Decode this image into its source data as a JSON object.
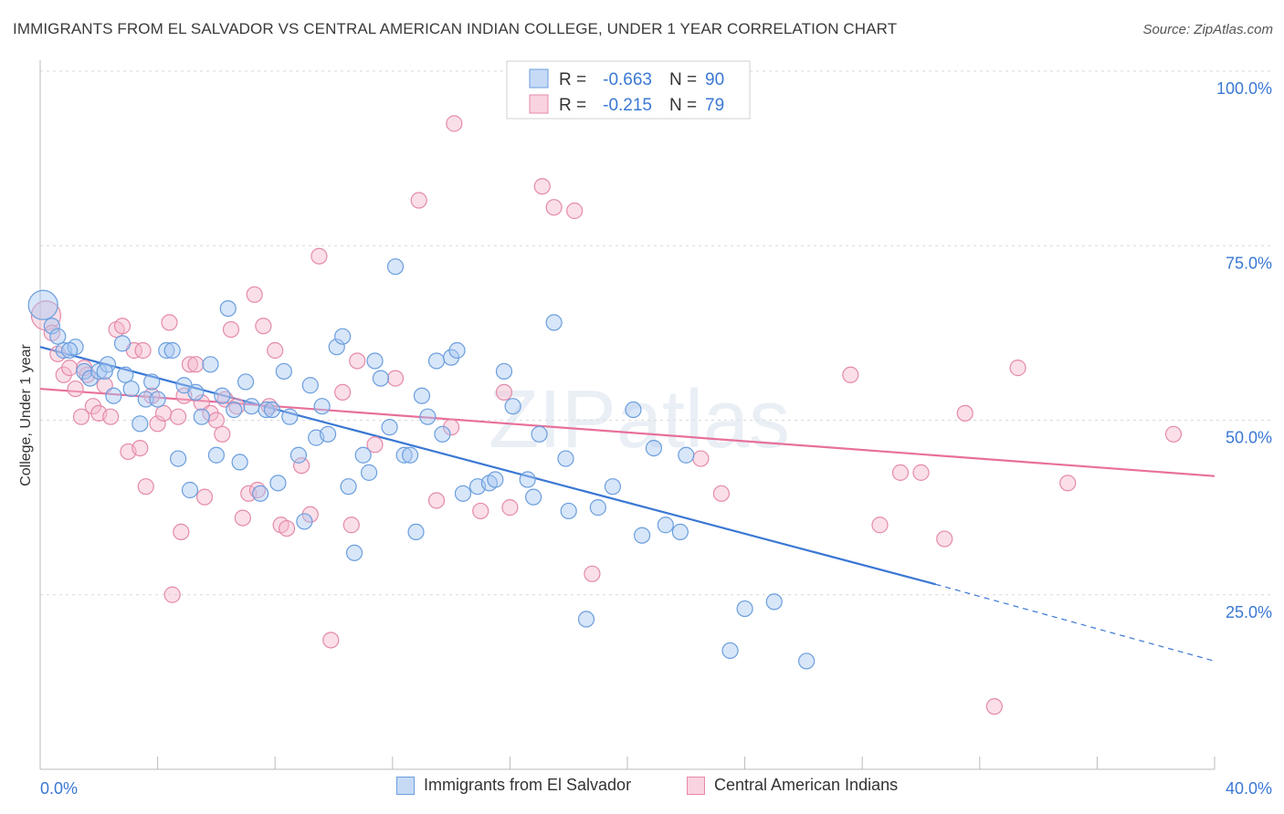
{
  "title": "IMMIGRANTS FROM EL SALVADOR VS CENTRAL AMERICAN INDIAN COLLEGE, UNDER 1 YEAR CORRELATION CHART",
  "source": "Source: ZipAtlas.com",
  "watermark": "ZIPatlas",
  "colors": {
    "blue": "#3a78d4",
    "blue_fill": "#a9c8f2",
    "pink": "#e8709a",
    "pink_fill": "#f5b9cc",
    "accent_text": "#3a78d4"
  },
  "legend_top": [
    {
      "r_label": "R =",
      "r_value": "-0.663",
      "n_label": "N =",
      "n_value": "90"
    },
    {
      "r_label": "R =",
      "r_value": "-0.215",
      "n_label": "N =",
      "n_value": "79"
    }
  ],
  "legend_bottom": [
    "Immigrants from El Salvador",
    "Central American Indians"
  ],
  "chart_data": {
    "type": "scatter",
    "title": "IMMIGRANTS FROM EL SALVADOR VS CENTRAL AMERICAN INDIAN COLLEGE, UNDER 1 YEAR CORRELATION CHART",
    "xlabel": "",
    "ylabel": "College, Under 1 year",
    "xlim": [
      0,
      40
    ],
    "ylim": [
      0,
      100
    ],
    "x_tick_labels": [
      "0.0%",
      "40.0%"
    ],
    "y_tick_labels": [
      "25.0%",
      "50.0%",
      "75.0%",
      "100.0%"
    ],
    "y_ticks": [
      25,
      50,
      75,
      100
    ],
    "grid": true,
    "legend_position": "top-center",
    "series": [
      {
        "name": "Immigrants from El Salvador",
        "color": "#3a78d4",
        "trend": {
          "x0": 0,
          "y0": 60.5,
          "x1": 30.5,
          "y1": 26.5,
          "dash_to_x": 40,
          "dash_to_y": 15.5
        },
        "points": [
          [
            0.1,
            66.5
          ],
          [
            0.4,
            63.5
          ],
          [
            0.6,
            62
          ],
          [
            0.8,
            60
          ],
          [
            1.2,
            60.5
          ],
          [
            1.0,
            60
          ],
          [
            1.5,
            57
          ],
          [
            1.7,
            56
          ],
          [
            2.0,
            57
          ],
          [
            2.3,
            58
          ],
          [
            2.5,
            53.5
          ],
          [
            2.8,
            61
          ],
          [
            2.9,
            56.5
          ],
          [
            3.1,
            54.5
          ],
          [
            3.4,
            49.5
          ],
          [
            3.6,
            53
          ],
          [
            3.8,
            55.5
          ],
          [
            4.0,
            53
          ],
          [
            4.3,
            60
          ],
          [
            4.5,
            60
          ],
          [
            4.7,
            44.5
          ],
          [
            4.9,
            55
          ],
          [
            5.1,
            40
          ],
          [
            5.3,
            54
          ],
          [
            5.5,
            50.5
          ],
          [
            5.8,
            58
          ],
          [
            6.0,
            45
          ],
          [
            6.2,
            53.5
          ],
          [
            6.4,
            66
          ],
          [
            6.6,
            51.5
          ],
          [
            6.8,
            44
          ],
          [
            7.0,
            55.5
          ],
          [
            7.2,
            52
          ],
          [
            7.5,
            39.5
          ],
          [
            7.7,
            51.5
          ],
          [
            7.9,
            51.5
          ],
          [
            8.1,
            41
          ],
          [
            8.3,
            57
          ],
          [
            8.5,
            50.5
          ],
          [
            8.8,
            45
          ],
          [
            9.0,
            35.5
          ],
          [
            9.2,
            55
          ],
          [
            9.4,
            47.5
          ],
          [
            9.6,
            52
          ],
          [
            9.8,
            48
          ],
          [
            10.1,
            60.5
          ],
          [
            10.3,
            62
          ],
          [
            10.5,
            40.5
          ],
          [
            10.7,
            31
          ],
          [
            11.0,
            45
          ],
          [
            11.2,
            42.5
          ],
          [
            11.4,
            58.5
          ],
          [
            11.6,
            56
          ],
          [
            11.9,
            49
          ],
          [
            12.1,
            72
          ],
          [
            12.4,
            45
          ],
          [
            12.6,
            45
          ],
          [
            12.8,
            34
          ],
          [
            13.0,
            53.5
          ],
          [
            13.2,
            50.5
          ],
          [
            13.5,
            58.5
          ],
          [
            13.7,
            48
          ],
          [
            14.0,
            59
          ],
          [
            14.2,
            60
          ],
          [
            14.4,
            39.5
          ],
          [
            14.9,
            40.5
          ],
          [
            15.3,
            41
          ],
          [
            15.5,
            41.5
          ],
          [
            15.8,
            57
          ],
          [
            16.1,
            52
          ],
          [
            16.6,
            41.5
          ],
          [
            16.8,
            39
          ],
          [
            17.0,
            48
          ],
          [
            17.5,
            64
          ],
          [
            17.9,
            44.5
          ],
          [
            18.0,
            37
          ],
          [
            18.6,
            21.5
          ],
          [
            19.0,
            37.5
          ],
          [
            19.5,
            40.5
          ],
          [
            20.2,
            51.5
          ],
          [
            20.5,
            33.5
          ],
          [
            20.9,
            46
          ],
          [
            21.3,
            35
          ],
          [
            21.8,
            34
          ],
          [
            22.0,
            45
          ],
          [
            23.5,
            17
          ],
          [
            24.0,
            23
          ],
          [
            25.0,
            24
          ],
          [
            26.1,
            15.5
          ],
          [
            2.2,
            57
          ]
        ]
      },
      {
        "name": "Central American Indians",
        "color": "#e8709a",
        "trend": {
          "x0": 0,
          "y0": 54.5,
          "x1": 40,
          "y1": 42
        },
        "points": [
          [
            0.2,
            65
          ],
          [
            0.4,
            62.5
          ],
          [
            0.6,
            59.5
          ],
          [
            0.8,
            56.5
          ],
          [
            1.0,
            57.5
          ],
          [
            1.2,
            54.5
          ],
          [
            1.4,
            50.5
          ],
          [
            1.6,
            56.5
          ],
          [
            1.8,
            52
          ],
          [
            2.0,
            51
          ],
          [
            2.2,
            55
          ],
          [
            2.4,
            50.5
          ],
          [
            2.6,
            63
          ],
          [
            2.8,
            63.5
          ],
          [
            3.0,
            45.5
          ],
          [
            3.2,
            60
          ],
          [
            3.4,
            46
          ],
          [
            3.5,
            60
          ],
          [
            3.6,
            40.5
          ],
          [
            3.8,
            53.5
          ],
          [
            4.0,
            49.5
          ],
          [
            4.2,
            51
          ],
          [
            4.4,
            64
          ],
          [
            4.5,
            25
          ],
          [
            4.7,
            50.5
          ],
          [
            4.8,
            34
          ],
          [
            4.9,
            53.5
          ],
          [
            5.1,
            58
          ],
          [
            5.3,
            58
          ],
          [
            5.5,
            52.5
          ],
          [
            5.6,
            39
          ],
          [
            5.8,
            51
          ],
          [
            6.0,
            50
          ],
          [
            6.2,
            48
          ],
          [
            6.3,
            53
          ],
          [
            6.5,
            63
          ],
          [
            6.7,
            52
          ],
          [
            6.9,
            36
          ],
          [
            7.1,
            39.5
          ],
          [
            7.3,
            68
          ],
          [
            7.4,
            40
          ],
          [
            7.6,
            63.5
          ],
          [
            7.8,
            52
          ],
          [
            8.0,
            60
          ],
          [
            8.2,
            35
          ],
          [
            8.4,
            34.5
          ],
          [
            8.9,
            43.5
          ],
          [
            9.2,
            36.5
          ],
          [
            9.5,
            73.5
          ],
          [
            9.9,
            18.5
          ],
          [
            10.3,
            54
          ],
          [
            10.6,
            35
          ],
          [
            10.8,
            58.5
          ],
          [
            11.4,
            46.5
          ],
          [
            12.1,
            56
          ],
          [
            12.9,
            81.5
          ],
          [
            13.5,
            38.5
          ],
          [
            14.0,
            49
          ],
          [
            14.1,
            92.5
          ],
          [
            15.0,
            37
          ],
          [
            15.8,
            54
          ],
          [
            16.0,
            37.5
          ],
          [
            17.1,
            83.5
          ],
          [
            17.5,
            80.5
          ],
          [
            18.2,
            80
          ],
          [
            18.8,
            28
          ],
          [
            22.5,
            44.5
          ],
          [
            23.2,
            39.5
          ],
          [
            27.6,
            56.5
          ],
          [
            28.6,
            35
          ],
          [
            29.3,
            42.5
          ],
          [
            30.0,
            42.5
          ],
          [
            30.8,
            33
          ],
          [
            31.5,
            51
          ],
          [
            32.5,
            9
          ],
          [
            33.3,
            57.5
          ],
          [
            35.0,
            41
          ],
          [
            38.6,
            48
          ],
          [
            1.5,
            57.5
          ]
        ]
      }
    ]
  }
}
